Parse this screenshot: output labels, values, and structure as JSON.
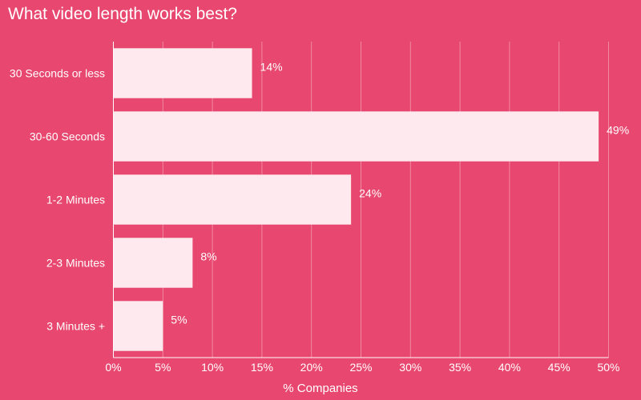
{
  "chart_data": {
    "type": "bar",
    "orientation": "horizontal",
    "title": "What video length works best?",
    "xlabel": "% Companies",
    "ylabel": "",
    "categories": [
      "30 Seconds or less",
      "30-60 Seconds",
      "1-2 Minutes",
      "2-3 Minutes",
      "3 Minutes +"
    ],
    "values": [
      14,
      49,
      24,
      8,
      5
    ],
    "value_labels": [
      "14%",
      "49%",
      "24%",
      "8%",
      "5%"
    ],
    "xlim": [
      0,
      50
    ],
    "x_ticks": [
      "0%",
      "5%",
      "10%",
      "15%",
      "20%",
      "25%",
      "30%",
      "35%",
      "40%",
      "45%",
      "50%"
    ],
    "grid": true,
    "legend": "none",
    "colors": {
      "background": "#e8476f",
      "bar": "#fde9ee",
      "grid": "#f08aa3",
      "text": "#ffffff"
    }
  }
}
